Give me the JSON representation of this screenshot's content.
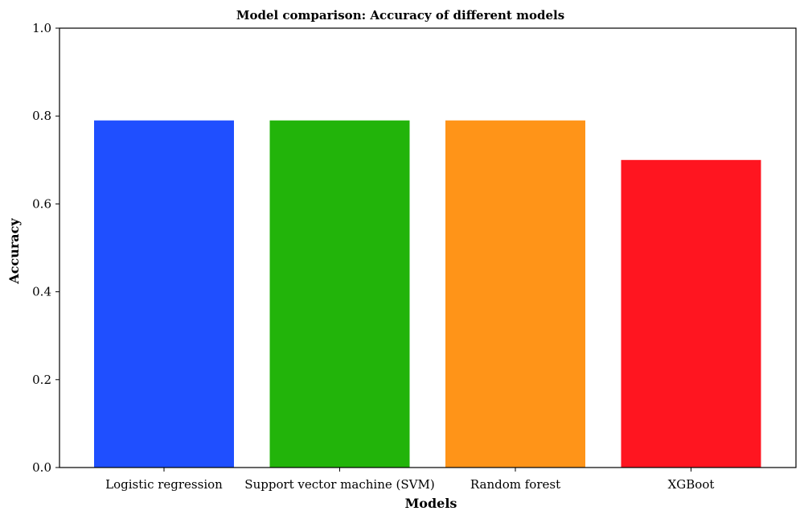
{
  "chart_data": {
    "type": "bar",
    "title": "Model comparison: Accuracy of different models",
    "xlabel": "Models",
    "ylabel": "Accuracy",
    "categories": [
      "Logistic regression",
      "Support vector machine (SVM)",
      "Random forest",
      "XGBoot"
    ],
    "values": [
      0.79,
      0.79,
      0.79,
      0.7
    ],
    "colors": [
      "#1f4fff",
      "#22b40a",
      "#ff9418",
      "#ff1520"
    ],
    "ylim": [
      0,
      1.0
    ],
    "yticks": [
      "0.0",
      "0.2",
      "0.4",
      "0.6",
      "0.8",
      "1.0"
    ],
    "grid": false
  }
}
